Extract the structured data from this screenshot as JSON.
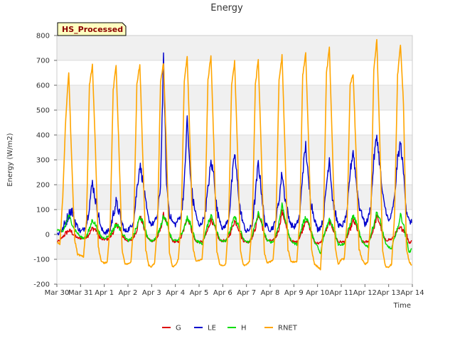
{
  "chart_data": {
    "type": "line",
    "title": "Energy",
    "xlabel": "Time",
    "ylabel": "Energy (W/m2)",
    "badge": "HS_Processed",
    "ylim": [
      -200,
      800
    ],
    "yticks": [
      -200,
      -100,
      0,
      100,
      200,
      300,
      400,
      500,
      600,
      700,
      800
    ],
    "xlim": [
      "2024-03-30",
      "2024-04-14"
    ],
    "xticks": [
      "2024-03-30",
      "2024-03-31",
      "2024-04-01",
      "2024-04-02",
      "2024-04-03",
      "2024-04-04",
      "2024-04-05",
      "2024-04-06",
      "2024-04-07",
      "2024-04-08",
      "2024-04-09",
      "2024-04-10",
      "2024-04-11",
      "2024-04-12",
      "2024-04-13",
      "2024-04-14"
    ],
    "xtick_labels": [
      "Mar 30",
      "Mar 31",
      "Apr 1",
      "Apr 2",
      "Apr 3",
      "Apr 4",
      "Apr 5",
      "Apr 6",
      "Apr 7",
      "Apr 8",
      "Apr 9",
      "Apr 10",
      "Apr 11",
      "Apr 12",
      "Apr 13",
      "Apr 14"
    ],
    "grid": true,
    "legend_position": "bottom-center",
    "days": [
      "2024-03-30",
      "2024-03-31",
      "2024-04-01",
      "2024-04-02",
      "2024-04-03",
      "2024-04-04",
      "2024-04-05",
      "2024-04-06",
      "2024-04-07",
      "2024-04-08",
      "2024-04-09",
      "2024-04-10",
      "2024-04-11",
      "2024-04-12",
      "2024-04-13"
    ],
    "samples_per_day": 8,
    "sample_hours": [
      0,
      3,
      6,
      9,
      12,
      15,
      18,
      21
    ],
    "series": [
      {
        "name": "G",
        "color": "#dd0000",
        "values": [
          [
            -30,
            -25,
            -10,
            5,
            15,
            10,
            -5,
            -15
          ],
          [
            -15,
            -15,
            -10,
            5,
            25,
            20,
            0,
            -20
          ],
          [
            -20,
            -20,
            -10,
            10,
            40,
            30,
            0,
            -20
          ],
          [
            -25,
            -25,
            -10,
            20,
            75,
            45,
            0,
            -20
          ],
          [
            -25,
            -25,
            -10,
            20,
            80,
            50,
            0,
            -25
          ],
          [
            -30,
            -30,
            -10,
            25,
            70,
            40,
            -5,
            -30
          ],
          [
            -30,
            -30,
            -10,
            20,
            60,
            40,
            0,
            -25
          ],
          [
            -25,
            -25,
            -10,
            20,
            55,
            35,
            0,
            -25
          ],
          [
            -30,
            -30,
            -10,
            25,
            80,
            50,
            0,
            -25
          ],
          [
            -25,
            -25,
            -10,
            25,
            90,
            55,
            0,
            -25
          ],
          [
            -30,
            -30,
            -10,
            20,
            60,
            40,
            0,
            -30
          ],
          [
            -35,
            -35,
            -10,
            20,
            50,
            30,
            -5,
            -30
          ],
          [
            -30,
            -30,
            -10,
            20,
            55,
            35,
            0,
            -30
          ],
          [
            -30,
            -30,
            -10,
            25,
            70,
            45,
            0,
            -25
          ],
          [
            -20,
            -20,
            -5,
            15,
            25,
            20,
            0,
            -35
          ]
        ]
      },
      {
        "name": "LE",
        "color": "#0000cc",
        "values": [
          [
            0,
            10,
            20,
            50,
            80,
            100,
            60,
            30
          ],
          [
            10,
            20,
            40,
            120,
            210,
            140,
            80,
            20
          ],
          [
            10,
            10,
            20,
            80,
            130,
            90,
            40,
            10
          ],
          [
            20,
            30,
            60,
            180,
            280,
            220,
            120,
            60
          ],
          [
            40,
            50,
            80,
            200,
            710,
            200,
            90,
            50
          ],
          [
            40,
            60,
            80,
            200,
            470,
            240,
            130,
            80
          ],
          [
            30,
            50,
            80,
            180,
            290,
            240,
            100,
            60
          ],
          [
            20,
            40,
            60,
            200,
            330,
            200,
            90,
            40
          ],
          [
            10,
            20,
            40,
            160,
            290,
            180,
            60,
            30
          ],
          [
            20,
            30,
            60,
            140,
            250,
            150,
            80,
            40
          ],
          [
            30,
            40,
            80,
            250,
            360,
            200,
            120,
            60
          ],
          [
            20,
            30,
            60,
            200,
            310,
            150,
            80,
            40
          ],
          [
            30,
            50,
            90,
            250,
            340,
            220,
            120,
            80
          ],
          [
            40,
            60,
            120,
            300,
            400,
            280,
            150,
            100
          ],
          [
            50,
            80,
            150,
            300,
            370,
            250,
            100,
            50
          ]
        ]
      },
      {
        "name": "H",
        "color": "#00dd00",
        "values": [
          [
            20,
            15,
            10,
            40,
            75,
            50,
            20,
            5
          ],
          [
            -10,
            -15,
            -5,
            20,
            60,
            40,
            10,
            -10
          ],
          [
            -15,
            -10,
            0,
            20,
            40,
            30,
            10,
            -10
          ],
          [
            -25,
            -20,
            0,
            30,
            70,
            50,
            10,
            -20
          ],
          [
            -25,
            -20,
            0,
            30,
            75,
            55,
            10,
            -20
          ],
          [
            -25,
            -25,
            0,
            30,
            65,
            45,
            5,
            -25
          ],
          [
            -30,
            -40,
            0,
            40,
            80,
            50,
            10,
            -20
          ],
          [
            -25,
            -25,
            0,
            35,
            70,
            45,
            10,
            -20
          ],
          [
            -30,
            -30,
            0,
            40,
            85,
            55,
            10,
            -25
          ],
          [
            -30,
            -30,
            0,
            50,
            120,
            70,
            10,
            -25
          ],
          [
            -35,
            -40,
            0,
            40,
            70,
            50,
            5,
            -30
          ],
          [
            -50,
            -80,
            -10,
            30,
            60,
            40,
            5,
            -40
          ],
          [
            -40,
            -40,
            0,
            40,
            75,
            50,
            10,
            -30
          ],
          [
            -40,
            -50,
            0,
            40,
            90,
            60,
            10,
            -40
          ],
          [
            -50,
            -60,
            -10,
            20,
            80,
            40,
            -20,
            -75
          ]
        ]
      },
      {
        "name": "RNET",
        "color": "#ffa500",
        "values": [
          [
            -30,
            -40,
            150,
            470,
            650,
            300,
            -20,
            -80
          ],
          [
            -85,
            -90,
            60,
            600,
            680,
            350,
            -50,
            -110
          ],
          [
            -115,
            -110,
            40,
            580,
            680,
            330,
            -60,
            -120
          ],
          [
            -120,
            -110,
            60,
            600,
            685,
            320,
            -60,
            -125
          ],
          [
            -130,
            -115,
            50,
            610,
            690,
            340,
            -70,
            -130
          ],
          [
            -125,
            -100,
            60,
            620,
            710,
            350,
            -60,
            -110
          ],
          [
            -105,
            -100,
            70,
            620,
            720,
            360,
            -70,
            -120
          ],
          [
            -125,
            -120,
            60,
            600,
            695,
            330,
            -70,
            -125
          ],
          [
            -120,
            -110,
            60,
            600,
            705,
            330,
            -70,
            -115
          ],
          [
            -110,
            -100,
            70,
            620,
            718,
            350,
            -60,
            -110
          ],
          [
            -110,
            -110,
            70,
            640,
            730,
            360,
            -60,
            -120
          ],
          [
            -130,
            -140,
            60,
            650,
            748,
            360,
            -60,
            -120
          ],
          [
            -100,
            -100,
            60,
            600,
            645,
            330,
            -60,
            -100
          ],
          [
            -120,
            -110,
            80,
            660,
            785,
            380,
            -70,
            -130
          ],
          [
            -130,
            -120,
            80,
            640,
            765,
            530,
            -60,
            -110
          ]
        ]
      }
    ]
  }
}
